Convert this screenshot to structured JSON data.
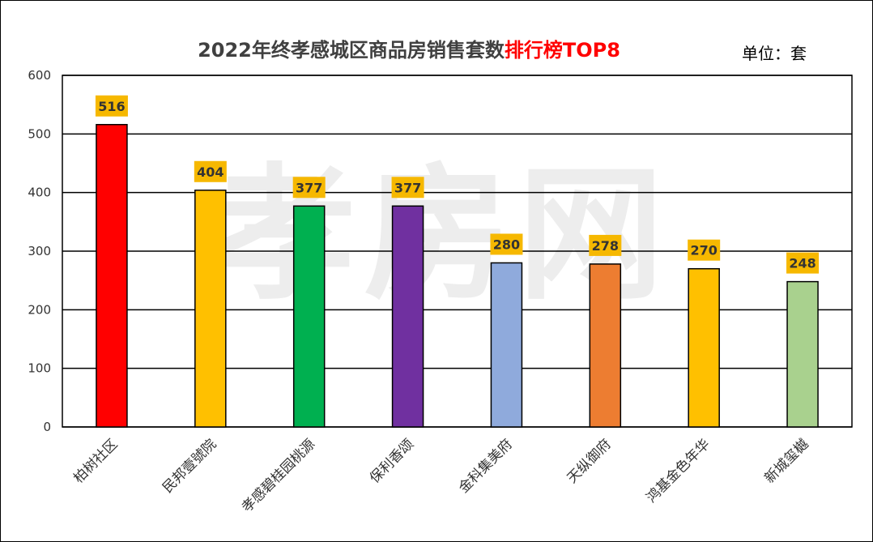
{
  "chart_data": {
    "type": "bar",
    "title": "2022年终孝感城区商品房销售套数",
    "title_highlight": "排行榜TOP8",
    "unit_label": "单位：套",
    "watermark": "孝房网",
    "categories": [
      "柏树社区",
      "民邦壹號院",
      "孝感碧桂园桃源",
      "保利香颂",
      "金科集美府",
      "天纵御府",
      "鸿基金色年华",
      "新城玺樾"
    ],
    "values": [
      516,
      404,
      377,
      377,
      280,
      278,
      270,
      248
    ],
    "colors": [
      "#ff0000",
      "#ffc000",
      "#00b050",
      "#7030a0",
      "#8faadc",
      "#ed7d31",
      "#ffc000",
      "#a9d18e"
    ],
    "ylim": [
      0,
      600
    ],
    "yticks": [
      0,
      100,
      200,
      300,
      400,
      500,
      600
    ],
    "grid": true,
    "label_bg_color": "#f6b800"
  }
}
